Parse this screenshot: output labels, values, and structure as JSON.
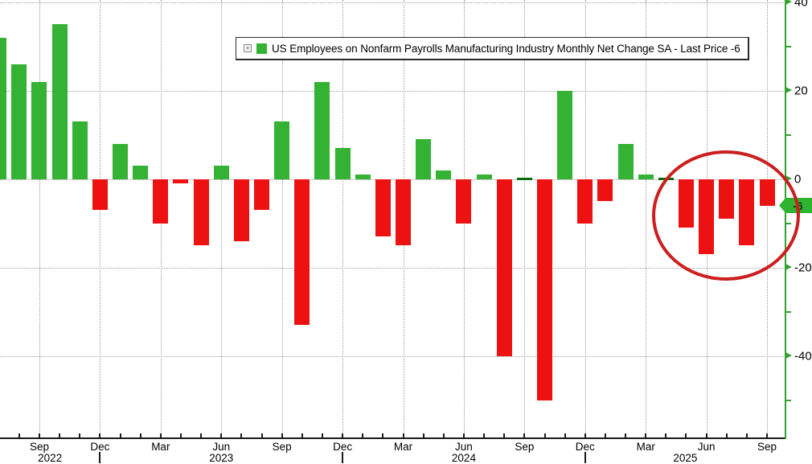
{
  "legend": {
    "expand_icon": "+",
    "series_label": "US Employees on Nonfarm Payrolls Manufacturing Industry Monthly Net Change SA - Last Price -6",
    "swatch_color": "#33b233"
  },
  "y_axis": {
    "last_price_badge": "-6"
  },
  "chart_data": {
    "type": "bar",
    "title": "US Employees on Nonfarm Payrolls Manufacturing Industry Monthly Net Change SA",
    "subtitle": "Last Price -6",
    "x": [
      "Jul 2022",
      "Aug 2022",
      "Sep 2022",
      "Oct 2022",
      "Nov 2022",
      "Dec 2022",
      "Jan 2023",
      "Feb 2023",
      "Mar 2023",
      "Apr 2023",
      "May 2023",
      "Jun 2023",
      "Jul 2023",
      "Aug 2023",
      "Sep 2023",
      "Oct 2023",
      "Nov 2023",
      "Dec 2023",
      "Jan 2024",
      "Feb 2024",
      "Mar 2024",
      "Apr 2024",
      "May 2024",
      "Jun 2024",
      "Jul 2024",
      "Aug 2024",
      "Sep 2024",
      "Oct 2024",
      "Nov 2024",
      "Dec 2024",
      "Jan 2025",
      "Feb 2025",
      "Mar 2025",
      "Apr 2025",
      "May 2025",
      "Jun 2025",
      "Jul 2025",
      "Aug 2025",
      "Sep 2025"
    ],
    "values": [
      32,
      26,
      22,
      35,
      13,
      -7,
      8,
      3,
      -10,
      -1,
      -15,
      3,
      -14,
      -7,
      13,
      -33,
      22,
      7,
      1,
      -13,
      -15,
      9,
      2,
      -10,
      1,
      -40,
      0,
      -50,
      20,
      -10,
      -5,
      8,
      1,
      0,
      -11,
      -17,
      -9,
      -15,
      -6
    ],
    "last_price": -6,
    "ylim": [
      -58,
      40.5
    ],
    "yticks": [
      40,
      20,
      0,
      -20,
      -40
    ],
    "ytick_labels": [
      "40",
      "20",
      "0",
      "-20",
      "-40"
    ],
    "y_minor_ticks": [
      30,
      10,
      -10,
      -30,
      -50
    ],
    "x_quarter_months": [
      "Mar",
      "Jun",
      "Sep",
      "Dec"
    ],
    "x_year_labels": [
      "2022",
      "2023",
      "2024",
      "2025"
    ],
    "grid": "dotted",
    "legend_position": "top-center",
    "positive_color": "#33b233",
    "negative_color": "#ee1111",
    "zero_bar_color": "#0b6b0b",
    "axis_color": "#2fa32f",
    "annotation": {
      "type": "circle",
      "color": "#cb1f1f",
      "highlights": "May 2025 - Sep 2025 negative prints"
    }
  }
}
